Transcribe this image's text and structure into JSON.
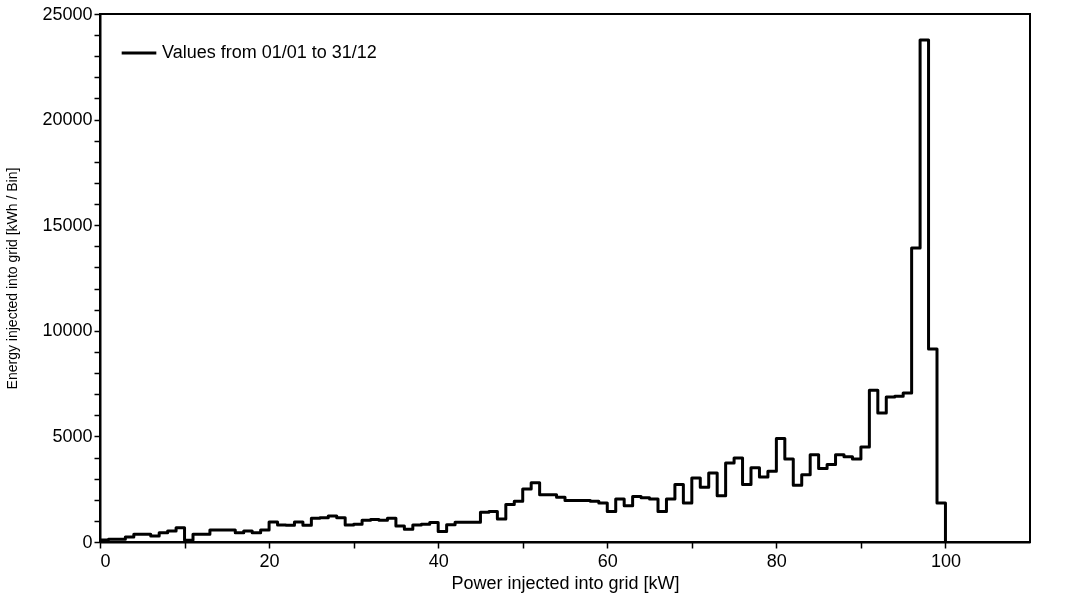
{
  "chart_data": {
    "type": "histogram",
    "xlabel": "Power injected into grid [kW]",
    "ylabel": "Energy injected into grid [kWh / Bin]",
    "bins": [
      0,
      1,
      2,
      3,
      4,
      5,
      6,
      7,
      8,
      9,
      10,
      11,
      12,
      13,
      14,
      15,
      16,
      17,
      18,
      19,
      20,
      21,
      22,
      23,
      24,
      25,
      26,
      27,
      28,
      29,
      30,
      31,
      32,
      33,
      34,
      35,
      36,
      37,
      38,
      39,
      40,
      41,
      42,
      43,
      44,
      45,
      46,
      47,
      48,
      49,
      50,
      51,
      52,
      53,
      54,
      55,
      56,
      57,
      58,
      59,
      60,
      61,
      62,
      63,
      64,
      65,
      66,
      67,
      68,
      69,
      70,
      71,
      72,
      73,
      74,
      75,
      76,
      77,
      78,
      79,
      80,
      81,
      82,
      83,
      84,
      85,
      86,
      87,
      88,
      89,
      90,
      91,
      92,
      93,
      94,
      95,
      96,
      97,
      98,
      99,
      100
    ],
    "series": [
      {
        "name": "Values from 01/01 to 31/12",
        "color": "#000000",
        "values": [
          100,
          130,
          130,
          240,
          370,
          370,
          290,
          440,
          520,
          680,
          80,
          370,
          370,
          570,
          570,
          570,
          440,
          520,
          440,
          570,
          950,
          810,
          790,
          950,
          790,
          1120,
          1150,
          1230,
          1150,
          810,
          840,
          1030,
          1070,
          1030,
          1120,
          760,
          600,
          810,
          840,
          920,
          500,
          820,
          930,
          930,
          930,
          1410,
          1450,
          1090,
          1770,
          1930,
          2510,
          2800,
          2240,
          2240,
          2120,
          1960,
          1960,
          1960,
          1930,
          1850,
          1450,
          2040,
          1720,
          2160,
          2090,
          2040,
          1450,
          2040,
          2720,
          1850,
          3030,
          2590,
          3270,
          2190,
          3740,
          3980,
          2720,
          3510,
          3080,
          3350,
          4900,
          3930,
          2690,
          3180,
          4130,
          3480,
          3670,
          4130,
          4040,
          3930,
          4500,
          7180,
          6110,
          6870,
          6900,
          7060,
          13920,
          23770,
          9140,
          1850
        ]
      }
    ],
    "xlim": [
      0,
      110
    ],
    "xticks": [
      0,
      {
        "value": 10,
        "label": null
      },
      20,
      {
        "value": 30,
        "label": null
      },
      40,
      {
        "value": 50,
        "label": null
      },
      60,
      {
        "value": 70,
        "label": null
      },
      80,
      {
        "value": 90,
        "label": null
      },
      100
    ],
    "ylim": [
      0,
      25000
    ],
    "yticks": [
      0,
      {
        "value": 1000,
        "label": null
      },
      {
        "value": 2000,
        "label": null
      },
      {
        "value": 3000,
        "label": null
      },
      {
        "value": 4000,
        "label": null
      },
      5000,
      {
        "value": 6000,
        "label": null
      },
      {
        "value": 7000,
        "label": null
      },
      {
        "value": 8000,
        "label": null
      },
      {
        "value": 9000,
        "label": null
      },
      10000,
      {
        "value": 11000,
        "label": null
      },
      {
        "value": 12000,
        "label": null
      },
      {
        "value": 13000,
        "label": null
      },
      {
        "value": 14000,
        "label": null
      },
      15000,
      {
        "value": 16000,
        "label": null
      },
      {
        "value": 17000,
        "label": null
      },
      {
        "value": 18000,
        "label": null
      },
      {
        "value": 19000,
        "label": null
      },
      20000,
      {
        "value": 21000,
        "label": null
      },
      {
        "value": 22000,
        "label": null
      },
      {
        "value": 23000,
        "label": null
      },
      {
        "value": 24000,
        "label": null
      },
      25000
    ],
    "legend": "top left"
  }
}
